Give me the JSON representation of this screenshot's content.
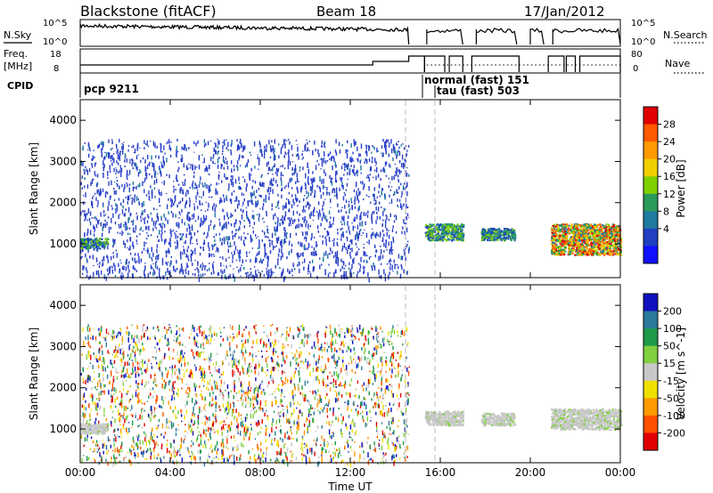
{
  "header": {
    "station": "Blackstone (fitACF)",
    "beam": "Beam 18",
    "date": "17/Jan/2012"
  },
  "top_panels": {
    "nsky_label": "N.Sky",
    "nsearch_label": "N.Search",
    "noise_ticks": [
      "10^5",
      "10^0"
    ],
    "freq_label": "Freq.",
    "freq_unit": "[MHz]",
    "freq_ticks": [
      "18",
      "8"
    ],
    "nave_label": "Nave",
    "nave_ticks": [
      "80",
      "0"
    ],
    "cpid_label": "CPID",
    "cpid_entries": [
      {
        "text": "pcp 9211",
        "start_hour": 0.0
      },
      {
        "text": "normal (fast) 151",
        "start_hour": 15.2
      },
      {
        "text": "tau (fast) 503",
        "start_hour": 15.3
      }
    ]
  },
  "chart_data": [
    {
      "type": "heatmap",
      "title": "Power",
      "xlabel": "",
      "ylabel": "Slant Range [km]",
      "colorbar_label": "Power [dB]",
      "colorbar_ticks": [
        "28",
        "24",
        "20",
        "16",
        "12",
        "8",
        "4"
      ],
      "colorbar_colors": [
        "#e00000",
        "#ff5a00",
        "#ff9a00",
        "#f0d000",
        "#7fd000",
        "#2a9a5a",
        "#1f7aa0",
        "#2040c0",
        "#1010ff"
      ],
      "x_ticks": [
        "00:00",
        "04:00",
        "08:00",
        "12:00",
        "16:00",
        "20:00",
        "00:00"
      ],
      "xlim_hours": [
        0,
        24
      ],
      "y_ticks": [
        "1000",
        "2000",
        "3000",
        "4000"
      ],
      "ylim_km": [
        180,
        4500
      ],
      "regions": [
        {
          "desc": "sparse nighttime scatter",
          "t0": 0.0,
          "t1": 14.6,
          "r0": 180,
          "r1": 3550,
          "level": "low"
        },
        {
          "desc": "ground scatter",
          "t0": 0.0,
          "t1": 1.2,
          "r0": 900,
          "r1": 1150,
          "level": "mid"
        },
        {
          "desc": "ionospheric scatter",
          "t0": 15.3,
          "t1": 17.0,
          "r0": 1100,
          "r1": 1500,
          "level": "mid"
        },
        {
          "desc": "ionospheric scatter",
          "t0": 17.8,
          "t1": 19.3,
          "r0": 1100,
          "r1": 1400,
          "level": "mid"
        },
        {
          "desc": "ionospheric scatter",
          "t0": 20.9,
          "t1": 24.0,
          "r0": 750,
          "r1": 1500,
          "level": "high"
        }
      ]
    },
    {
      "type": "heatmap",
      "title": "Velocity",
      "xlabel": "Time UT",
      "ylabel": "Slant Range [km]",
      "colorbar_label": "Velocity [m s^-1]",
      "colorbar_ticks": [
        "200",
        "100",
        "50",
        "15",
        "-15",
        "-50",
        "-100",
        "-200"
      ],
      "colorbar_colors": [
        "#1010c0",
        "#2a7a9a",
        "#1f9a4a",
        "#80d040",
        "#c8c8c8",
        "#f0e000",
        "#ff9a00",
        "#ff5000",
        "#e00000"
      ],
      "x_ticks": [
        "00:00",
        "04:00",
        "08:00",
        "12:00",
        "16:00",
        "20:00",
        "00:00"
      ],
      "xlim_hours": [
        0,
        24
      ],
      "y_ticks": [
        "1000",
        "2000",
        "3000",
        "4000"
      ],
      "ylim_km": [
        180,
        4500
      ],
      "regions": [
        {
          "desc": "mixed velocity scatter",
          "t0": 0.0,
          "t1": 14.6,
          "r0": 180,
          "r1": 3550,
          "level": "mixed"
        },
        {
          "desc": "ground scatter (grey)",
          "t0": 0.0,
          "t1": 1.2,
          "r0": 900,
          "r1": 1150,
          "level": "ground"
        },
        {
          "desc": "ground scatter (grey)",
          "t0": 15.3,
          "t1": 17.0,
          "r0": 1100,
          "r1": 1450,
          "level": "ground"
        },
        {
          "desc": "ground scatter (grey)",
          "t0": 17.8,
          "t1": 19.3,
          "r0": 1100,
          "r1": 1400,
          "level": "ground"
        },
        {
          "desc": "ground scatter (grey)",
          "t0": 20.9,
          "t1": 24.0,
          "r0": 1000,
          "r1": 1500,
          "level": "ground"
        }
      ]
    }
  ]
}
